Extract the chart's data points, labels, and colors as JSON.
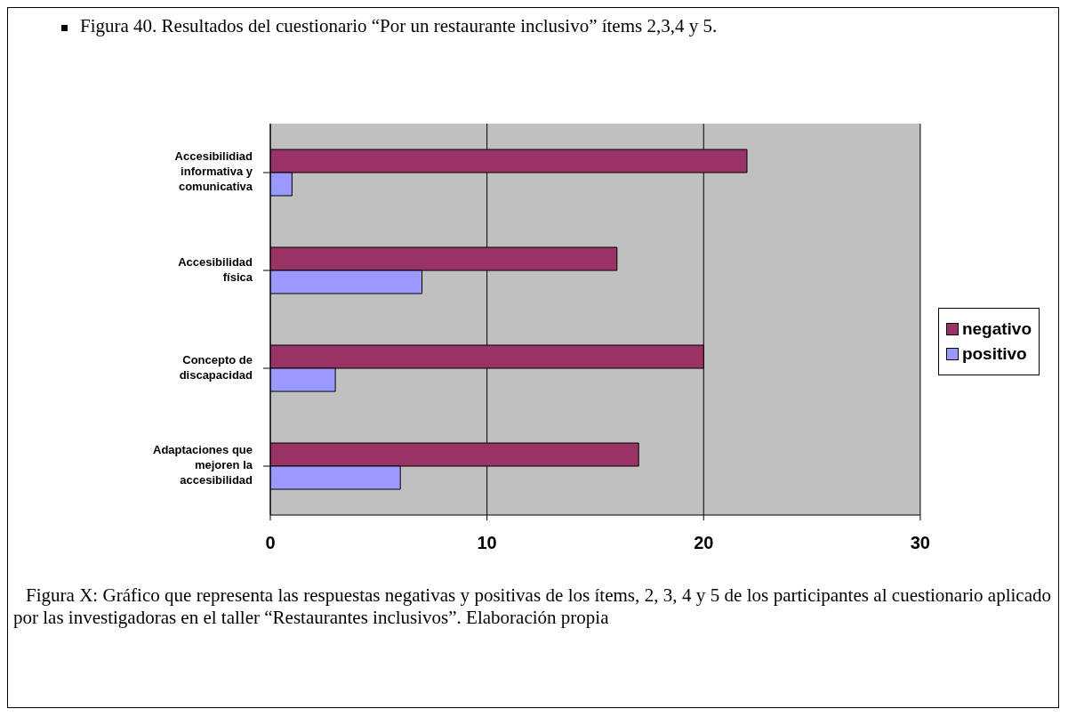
{
  "chart_data": {
    "type": "bar",
    "orientation": "horizontal",
    "title": "Figura 40. Resultados del cuestionario “Por un restaurante inclusivo” ítems 2,3,4 y 5.",
    "categories": [
      "Accesibilidiad informativa y comunicativa",
      "Accesibilidad física",
      "Concepto de discapacidad",
      "Adaptaciones que mejoren la accesibilidad"
    ],
    "series": [
      {
        "name": "negativo",
        "color": "#993366",
        "values": [
          22,
          16,
          20,
          17
        ]
      },
      {
        "name": "positivo",
        "color": "#9999ff",
        "values": [
          1,
          7,
          3,
          6
        ]
      }
    ],
    "xlim": [
      0,
      30
    ],
    "xticks": [
      0,
      10,
      20,
      30
    ],
    "grid": "x",
    "legend": "right",
    "annotations": [
      "Figura X: Gráfico que representa las respuestas negativas y positivas de los ítems, 2, 3, 4 y 5 de los participantes  al cuestionario aplicado por las investigadoras en el taller “Restaurantes inclusivos”. Elaboración propia"
    ]
  }
}
